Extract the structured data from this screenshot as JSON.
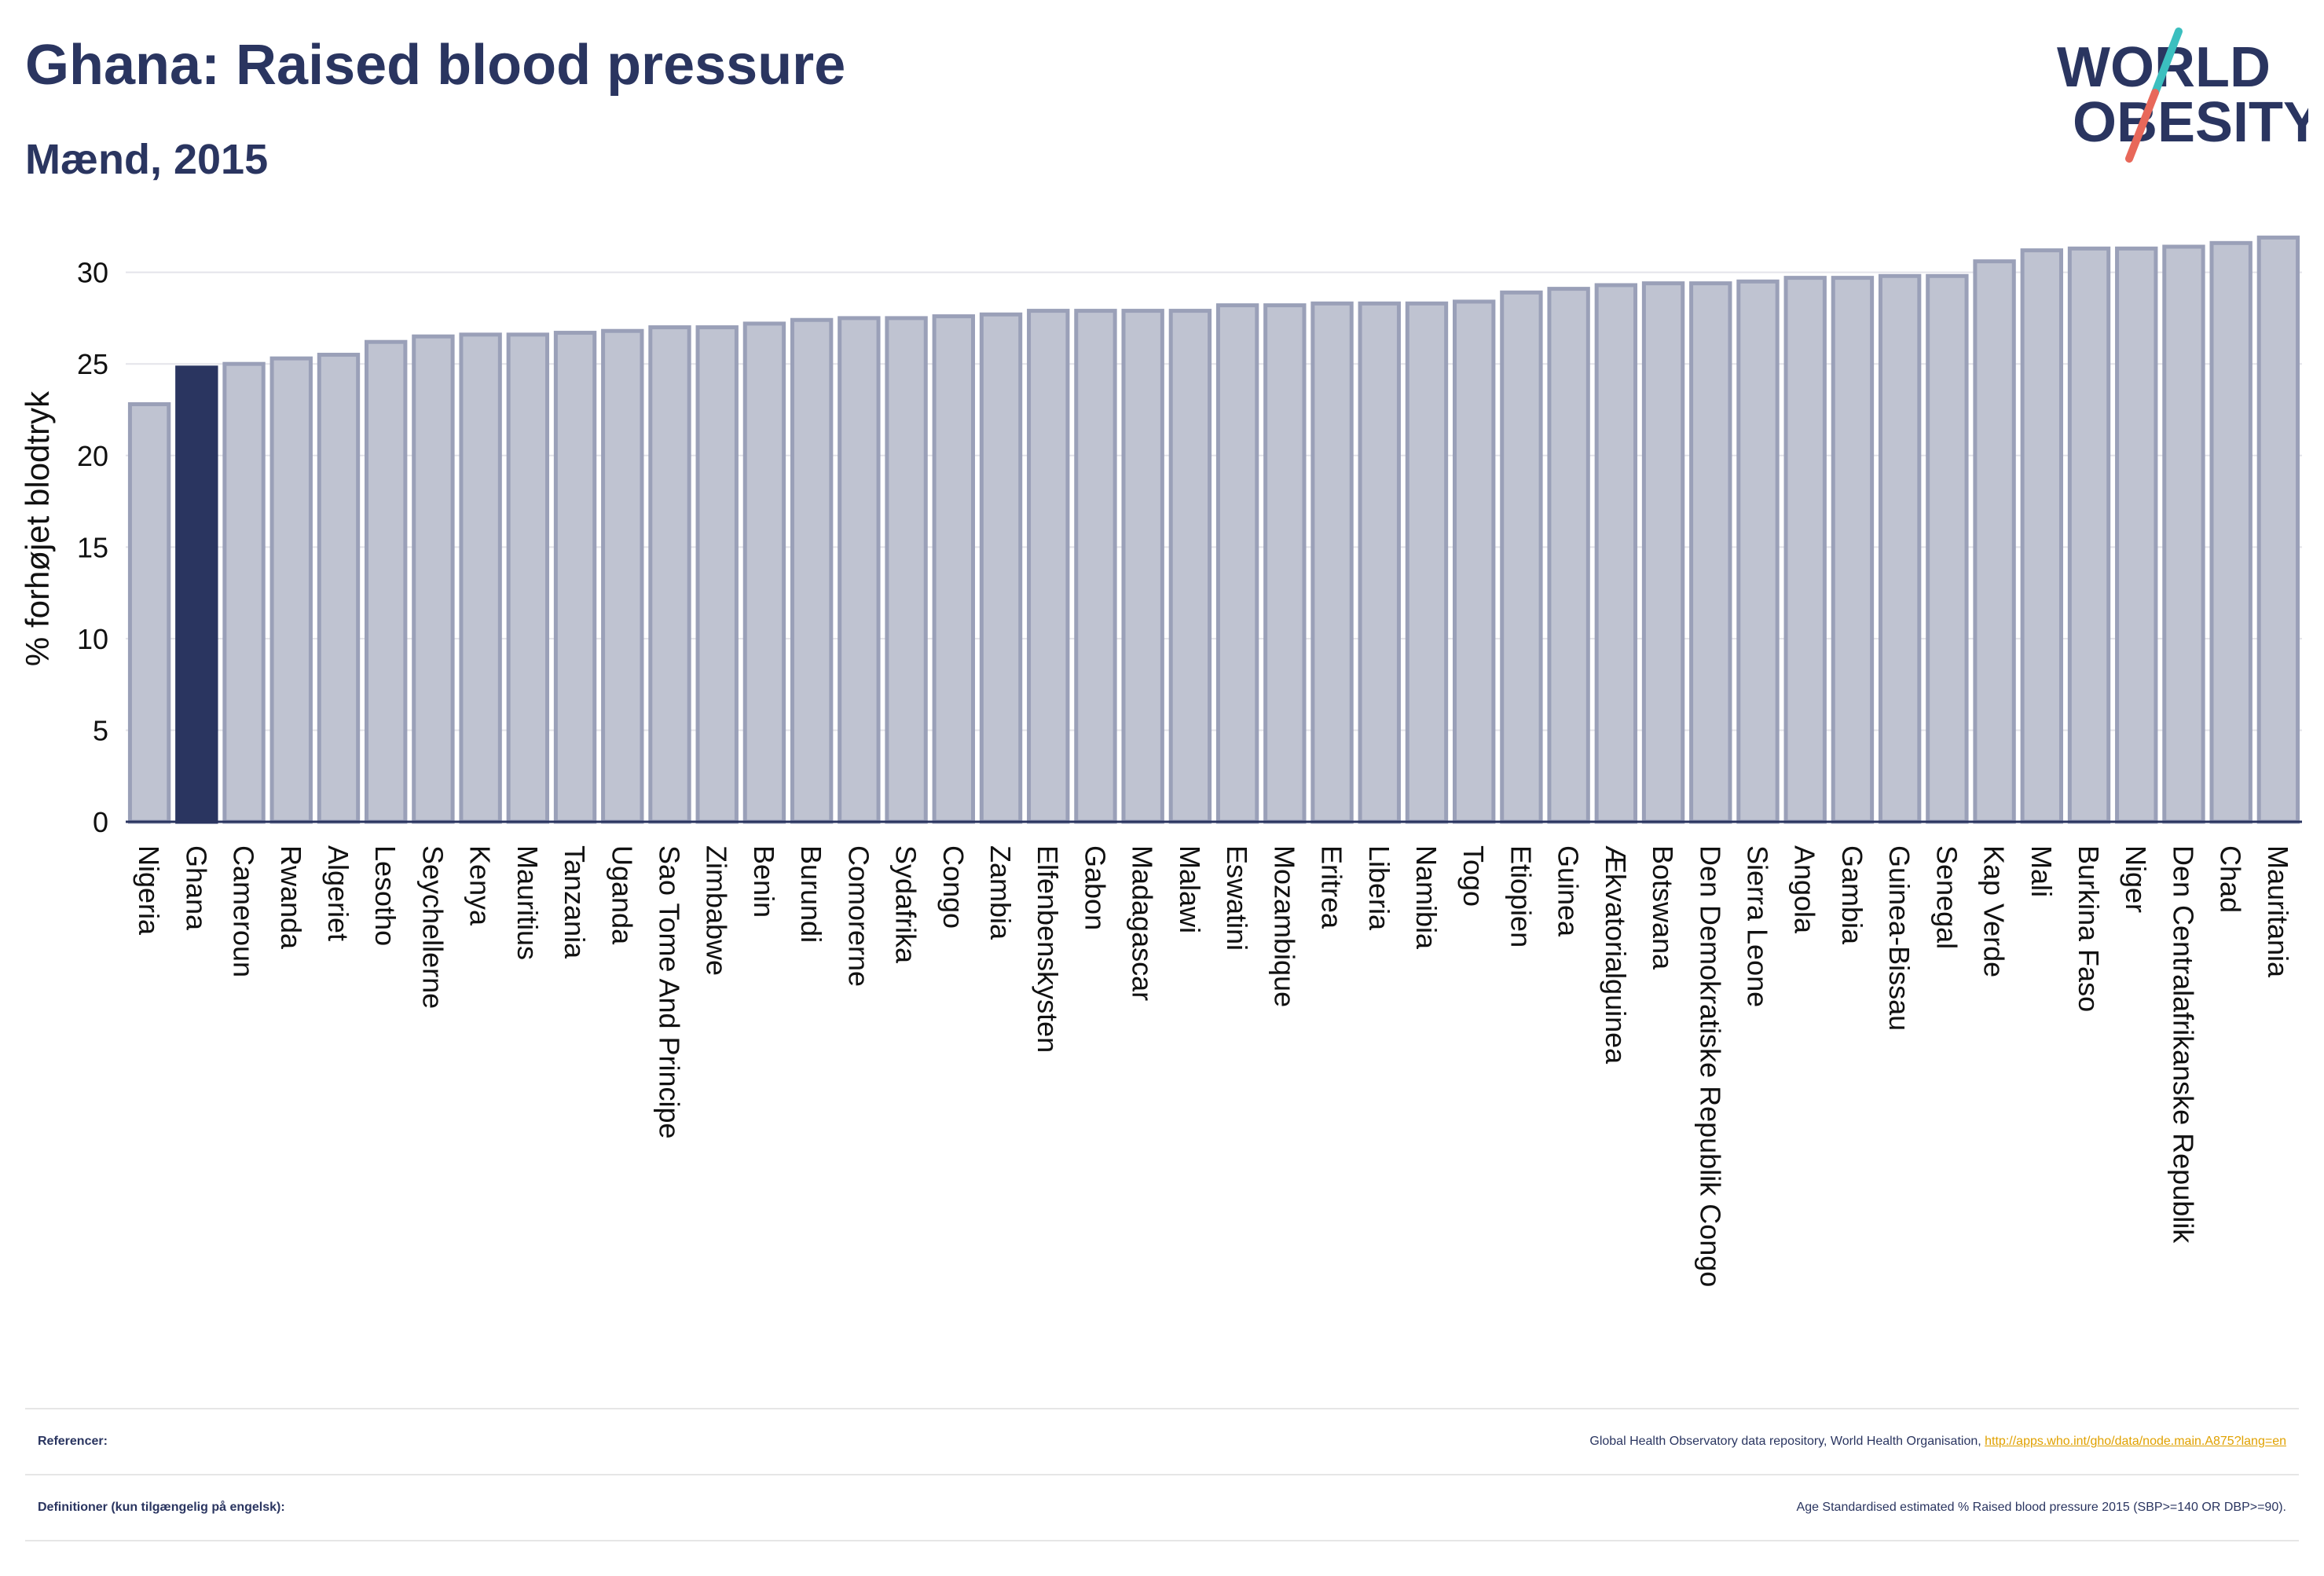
{
  "header": {
    "title": "Ghana: Raised blood pressure",
    "subtitle": "Mænd, 2015"
  },
  "logo": {
    "line1": "WORLD",
    "line2": "OBESITY",
    "accent_colors": [
      "#3bbfbf",
      "#e8685a"
    ]
  },
  "footer": {
    "references_label": "Referencer:",
    "references_text": "Global Health Observatory data repository, World Health Organisation, ",
    "references_link": "http://apps.who.int/gho/data/node.main.A875?lang=en",
    "definitions_label": "Definitioner (kun tilgængelig på engelsk):",
    "definitions_text": "Age Standardised estimated % Raised blood pressure 2015 (SBP>=140 OR DBP>=90)."
  },
  "colors": {
    "highlight": "#2a3560",
    "bar_fill": "#bfc3d1",
    "bar_stroke": "#9aa0b8"
  },
  "chart_data": {
    "type": "bar",
    "ylabel": "% forhøjet blodtryk",
    "ylim": [
      0,
      32
    ],
    "yticks": [
      0,
      5,
      10,
      15,
      20,
      25,
      30
    ],
    "grid": true,
    "highlight": "Ghana",
    "categories": [
      "Nigeria",
      "Ghana",
      "Cameroun",
      "Rwanda",
      "Algeriet",
      "Lesotho",
      "Seychellerne",
      "Kenya",
      "Mauritius",
      "Tanzania",
      "Uganda",
      "Sao Tome And Principe",
      "Zimbabwe",
      "Benin",
      "Burundi",
      "Comorerne",
      "Sydafrika",
      "Congo",
      "Zambia",
      "Elfenbenskysten",
      "Gabon",
      "Madagascar",
      "Malawi",
      "Eswatini",
      "Mozambique",
      "Eritrea",
      "Liberia",
      "Namibia",
      "Togo",
      "Etiopien",
      "Guinea",
      "Ækvatorialguinea",
      "Botswana",
      "Den Demokratiske Republik Congo",
      "Sierra Leone",
      "Angola",
      "Gambia",
      "Guinea-Bissau",
      "Senegal",
      "Kap Verde",
      "Mali",
      "Burkina Faso",
      "Niger",
      "Den Centralafrikanske Republik",
      "Chad",
      "Mauritania"
    ],
    "values": [
      22.8,
      24.8,
      25.0,
      25.3,
      25.5,
      26.2,
      26.5,
      26.6,
      26.6,
      26.7,
      26.8,
      27.0,
      27.0,
      27.2,
      27.4,
      27.5,
      27.5,
      27.6,
      27.7,
      27.9,
      27.9,
      27.9,
      27.9,
      28.2,
      28.2,
      28.3,
      28.3,
      28.3,
      28.4,
      28.9,
      29.1,
      29.3,
      29.4,
      29.4,
      29.5,
      29.7,
      29.7,
      29.8,
      29.8,
      30.6,
      31.2,
      31.3,
      31.3,
      31.4,
      31.6,
      31.9
    ]
  }
}
